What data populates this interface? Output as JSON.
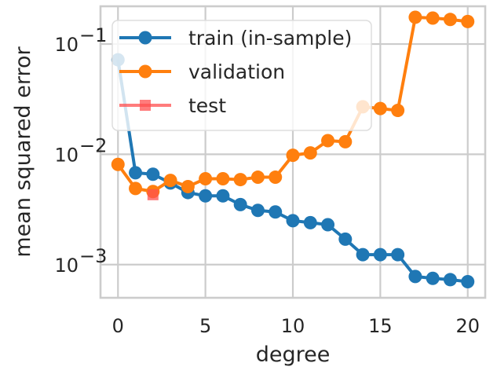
{
  "chart_data": {
    "type": "line",
    "xlabel": "degree",
    "ylabel": "mean squared error",
    "yscale": "log",
    "xlim": [
      -1,
      21
    ],
    "ylim": [
      0.0005,
      0.22
    ],
    "xticks": [
      0,
      5,
      10,
      15,
      20
    ],
    "xtick_labels": [
      "0",
      "5",
      "10",
      "15",
      "20"
    ],
    "yticks": [
      0.001,
      0.01,
      0.1
    ],
    "ytick_labels": [
      {
        "base": "10",
        "exp": "−3"
      },
      {
        "base": "10",
        "exp": "−2"
      },
      {
        "base": "10",
        "exp": "−1"
      }
    ],
    "grid": true,
    "legend_position": "top-left",
    "series": [
      {
        "name": "train (in-sample)",
        "color": "#1f77b4",
        "marker": "circle",
        "x": [
          0,
          1,
          2,
          3,
          4,
          5,
          6,
          7,
          8,
          9,
          10,
          11,
          12,
          13,
          14,
          15,
          16,
          17,
          18,
          19,
          20
        ],
        "values": [
          0.072,
          0.0068,
          0.0066,
          0.0055,
          0.0045,
          0.0042,
          0.0042,
          0.0035,
          0.0031,
          0.003,
          0.0025,
          0.0024,
          0.0023,
          0.0017,
          0.00123,
          0.00123,
          0.00123,
          0.00078,
          0.00075,
          0.00073,
          0.0007
        ]
      },
      {
        "name": "validation",
        "color": "#ff7f0e",
        "marker": "circle",
        "x": [
          0,
          1,
          2,
          3,
          4,
          5,
          6,
          7,
          8,
          9,
          10,
          11,
          12,
          13,
          14,
          15,
          16,
          17,
          18,
          19,
          20
        ],
        "values": [
          0.0081,
          0.0049,
          0.0046,
          0.0058,
          0.0051,
          0.006,
          0.006,
          0.0059,
          0.0062,
          0.0062,
          0.0098,
          0.0103,
          0.0133,
          0.013,
          0.027,
          0.026,
          0.025,
          0.175,
          0.172,
          0.167,
          0.16
        ]
      },
      {
        "name": "test",
        "color": "#ff5050",
        "marker": "square",
        "x": [
          2
        ],
        "values": [
          0.0043
        ]
      }
    ]
  }
}
